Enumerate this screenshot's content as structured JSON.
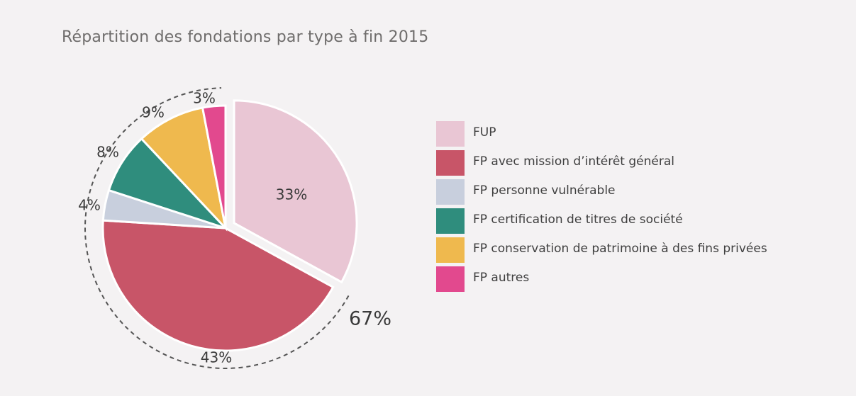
{
  "chart_data": {
    "type": "pie",
    "title": "Répartition des fondations par type à fin 2015",
    "slices": [
      {
        "name": "FUP",
        "value": 33,
        "label": "33%",
        "color": "#e9c6d4"
      },
      {
        "name": "FP avec mission d’intérêt général",
        "value": 43,
        "label": "43%",
        "color": "#c85568"
      },
      {
        "name": "FP personne vulnérable",
        "value": 4,
        "label": "4%",
        "color": "#c8cfdd"
      },
      {
        "name": "FP certification de titres de société",
        "value": 8,
        "label": "8%",
        "color": "#2f8d7d"
      },
      {
        "name": "FP conservation de patrimoine à des fins privées",
        "value": 9,
        "label": "9%",
        "color": "#efb94e"
      },
      {
        "name": "FP autres",
        "value": 3,
        "label": "3%",
        "color": "#e2498e"
      }
    ],
    "group_annotation": "67%",
    "legend_position": "right"
  }
}
